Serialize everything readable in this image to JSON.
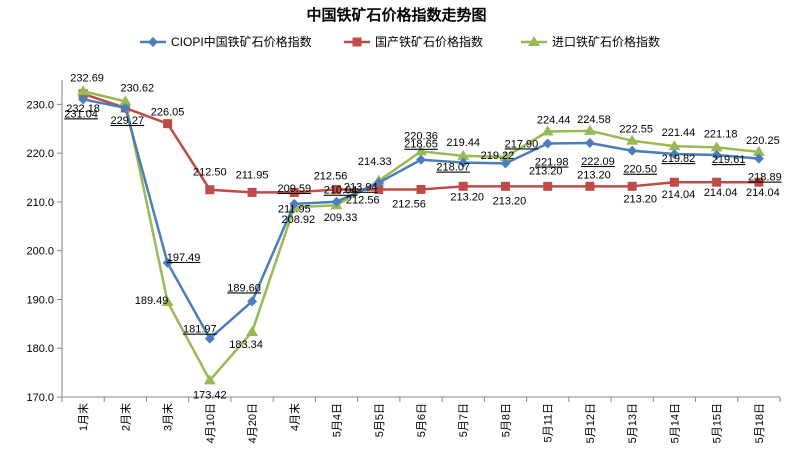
{
  "chart_data": {
    "type": "line",
    "title": "中国铁矿石价格指数走势图",
    "xlabel": "",
    "ylabel": "",
    "ylim": [
      170,
      235
    ],
    "yticks": [
      "170.0",
      "180.0",
      "190.0",
      "200.0",
      "210.0",
      "220.0",
      "230.0"
    ],
    "grid": false,
    "legend_position": "top",
    "categories": [
      "1月末",
      "2月末",
      "3月末",
      "4月10日",
      "4月20日",
      "4月末",
      "5月4日",
      "5月5日",
      "5月6日",
      "5月7日",
      "5月8日",
      "5月11日",
      "5月12日",
      "5月13日",
      "5月14日",
      "5月15日",
      "5月18日"
    ],
    "series": [
      {
        "name": "CIOPI中国铁矿石价格指数",
        "color": "#4a7ebb",
        "marker": "diamond",
        "values": [
          231.04,
          229.27,
          197.49,
          181.97,
          189.6,
          209.59,
          210.04,
          213.94,
          218.65,
          218.07,
          217.9,
          221.98,
          222.09,
          220.5,
          219.82,
          219.61,
          218.89
        ],
        "labels": [
          "231.04",
          "229.27",
          "197.49",
          "181.97",
          "189.60",
          "209.59",
          "210.04",
          "213.94",
          "218.65",
          "218.07",
          "217.90",
          "221.98",
          "222.09",
          "220.50",
          "219.82",
          "219.61",
          "218.89"
        ]
      },
      {
        "name": "国产铁矿石价格指数",
        "color": "#be4b48",
        "marker": "square",
        "values": [
          232.18,
          229.27,
          226.05,
          212.5,
          211.95,
          211.95,
          212.56,
          212.56,
          212.56,
          213.2,
          213.2,
          213.2,
          213.2,
          213.2,
          214.04,
          214.04,
          214.04
        ],
        "labels": [
          "232.18",
          "",
          "226.05",
          "212.50",
          "211.95",
          "211.95",
          "212.56",
          "212.56",
          "212.56",
          "213.20",
          "213.20",
          "213.20",
          "213.20",
          "213.20",
          "214.04",
          "214.04",
          "214.04"
        ]
      },
      {
        "name": "进口铁矿石价格指数",
        "color": "#98b954",
        "marker": "triangle",
        "values": [
          232.69,
          230.62,
          189.49,
          173.42,
          183.34,
          208.92,
          209.33,
          214.33,
          220.36,
          219.44,
          219.22,
          224.44,
          224.58,
          222.55,
          221.44,
          221.18,
          220.25
        ],
        "labels": [
          "232.69",
          "230.62",
          "189.49",
          "173.42",
          "183.34",
          "208.92",
          "209.33",
          "214.33",
          "220.36",
          "219.44",
          "219.22",
          "224.44",
          "224.58",
          "222.55",
          "221.44",
          "221.18",
          "220.25"
        ]
      }
    ]
  }
}
